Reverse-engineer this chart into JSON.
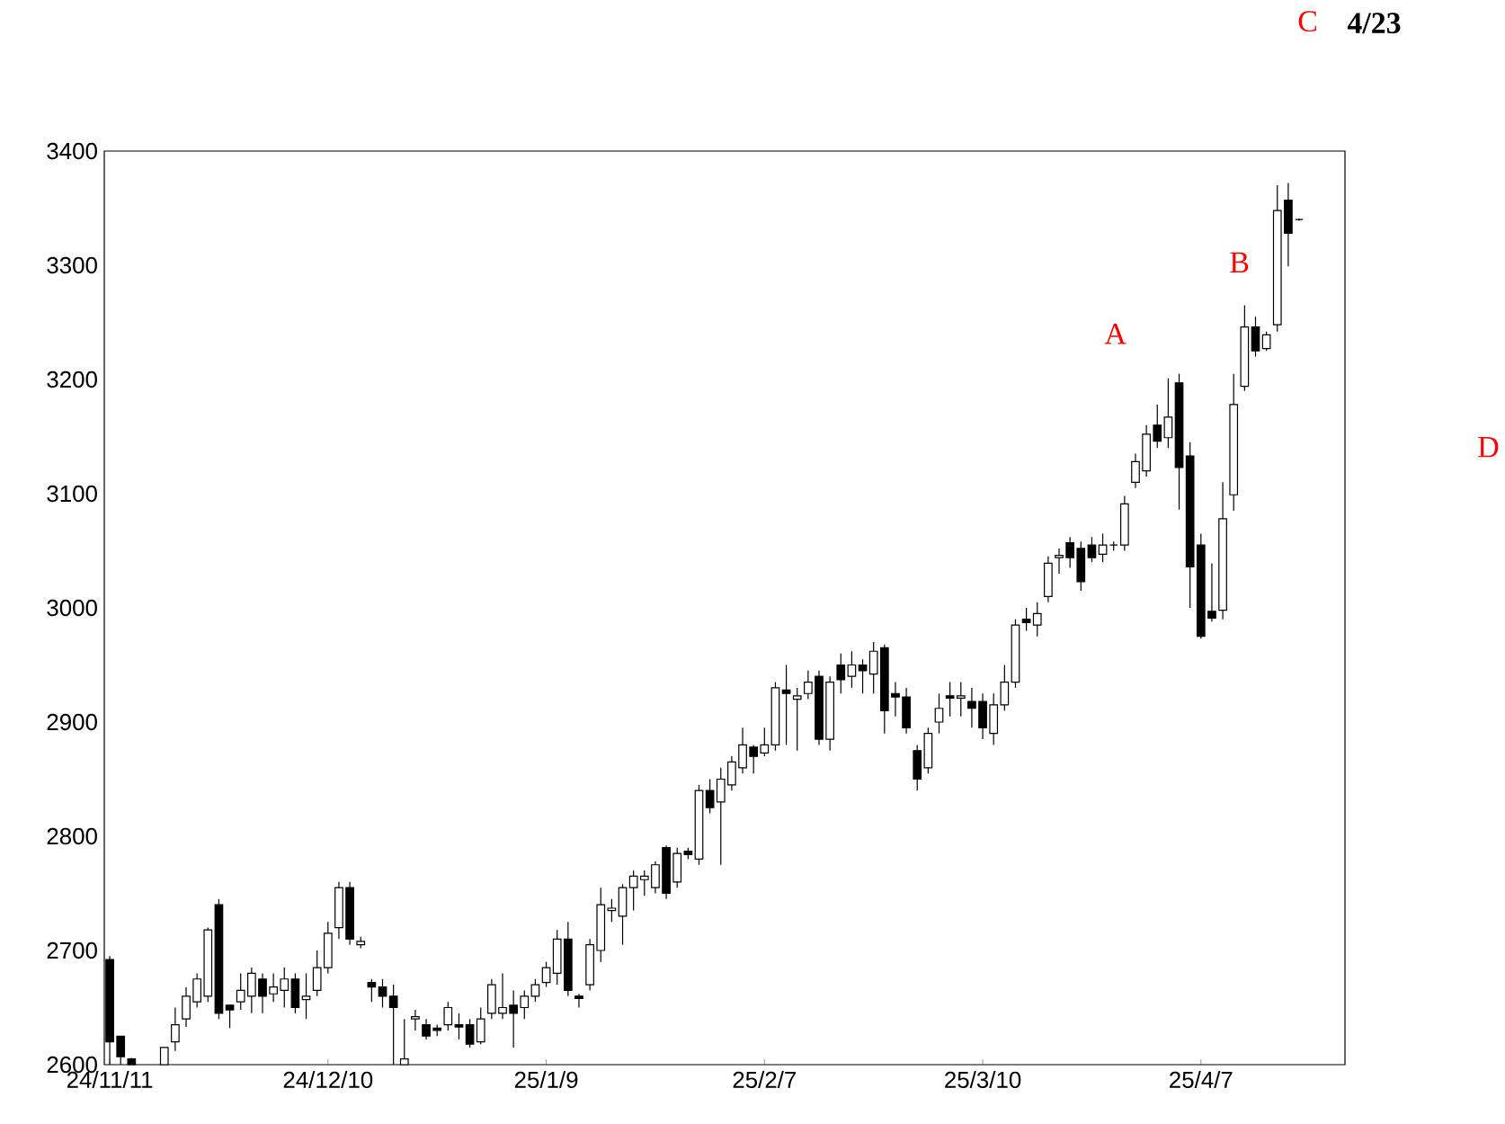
{
  "chart_data": {
    "type": "candlestick",
    "categories": [
      "24/11/11",
      null,
      null,
      null,
      null,
      null,
      null,
      null,
      null,
      null,
      null,
      null,
      null,
      null,
      null,
      null,
      null,
      null,
      null,
      null,
      "24/12/10",
      null,
      null,
      null,
      null,
      null,
      null,
      null,
      null,
      null,
      null,
      null,
      null,
      null,
      null,
      null,
      null,
      null,
      null,
      null,
      "25/1/9",
      null,
      null,
      null,
      null,
      null,
      null,
      null,
      null,
      null,
      null,
      null,
      null,
      null,
      null,
      null,
      null,
      null,
      null,
      null,
      "25/2/7",
      null,
      null,
      null,
      null,
      null,
      null,
      null,
      null,
      null,
      null,
      null,
      null,
      null,
      null,
      null,
      null,
      null,
      null,
      null,
      "25/3/10",
      null,
      null,
      null,
      null,
      null,
      null,
      null,
      null,
      null,
      null,
      null,
      null,
      null,
      null,
      null,
      null,
      null,
      null,
      null,
      "25/4/7",
      null,
      null,
      null,
      null,
      null,
      null,
      null,
      null,
      null
    ],
    "ohlc": [
      [
        2692,
        2695,
        2600,
        2620
      ],
      [
        2625,
        2625,
        2600,
        2607
      ],
      [
        2605,
        2606,
        2600,
        2600
      ],
      null,
      null,
      [
        2600,
        2615,
        2600,
        2615
      ],
      [
        2620,
        2650,
        2612,
        2635
      ],
      [
        2640,
        2668,
        2633,
        2660
      ],
      [
        2655,
        2680,
        2650,
        2675
      ],
      [
        2660,
        2720,
        2655,
        2718
      ],
      [
        2740,
        2745,
        2640,
        2645
      ],
      [
        2652,
        2652,
        2632,
        2648
      ],
      [
        2655,
        2680,
        2648,
        2665
      ],
      [
        2660,
        2685,
        2645,
        2680
      ],
      [
        2675,
        2680,
        2645,
        2660
      ],
      [
        2662,
        2680,
        2655,
        2668
      ],
      [
        2665,
        2685,
        2650,
        2675
      ],
      [
        2675,
        2680,
        2645,
        2650
      ],
      [
        2657,
        2680,
        2640,
        2660
      ],
      [
        2665,
        2700,
        2660,
        2685
      ],
      [
        2685,
        2725,
        2680,
        2715
      ],
      [
        2720,
        2760,
        2710,
        2755
      ],
      [
        2755,
        2760,
        2705,
        2710
      ],
      [
        2705,
        2712,
        2702,
        2708
      ],
      [
        2672,
        2675,
        2655,
        2668
      ],
      [
        2668,
        2675,
        2650,
        2660
      ],
      [
        2660,
        2670,
        2600,
        2650
      ],
      [
        2600,
        2640,
        2600,
        2605
      ],
      [
        2640,
        2648,
        2630,
        2642
      ],
      [
        2635,
        2640,
        2622,
        2625
      ],
      [
        2632,
        2635,
        2625,
        2630
      ],
      [
        2635,
        2655,
        2630,
        2650
      ],
      [
        2635,
        2645,
        2622,
        2633
      ],
      [
        2635,
        2640,
        2615,
        2618
      ],
      [
        2620,
        2650,
        2618,
        2640
      ],
      [
        2645,
        2675,
        2640,
        2670
      ],
      [
        2645,
        2680,
        2640,
        2650
      ],
      [
        2652,
        2665,
        2615,
        2645
      ],
      [
        2650,
        2665,
        2640,
        2660
      ],
      [
        2660,
        2675,
        2655,
        2670
      ],
      [
        2672,
        2690,
        2668,
        2685
      ],
      [
        2680,
        2718,
        2670,
        2710
      ],
      [
        2710,
        2725,
        2660,
        2665
      ],
      [
        2660,
        2662,
        2650,
        2658
      ],
      [
        2670,
        2710,
        2665,
        2705
      ],
      [
        2700,
        2755,
        2690,
        2740
      ],
      [
        2735,
        2745,
        2725,
        2737
      ],
      [
        2730,
        2758,
        2705,
        2755
      ],
      [
        2755,
        2770,
        2735,
        2765
      ],
      [
        2762,
        2770,
        2748,
        2765
      ],
      [
        2755,
        2778,
        2750,
        2775
      ],
      [
        2790,
        2792,
        2745,
        2750
      ],
      [
        2760,
        2790,
        2755,
        2785
      ],
      [
        2787,
        2790,
        2780,
        2784
      ],
      [
        2780,
        2845,
        2775,
        2840
      ],
      [
        2840,
        2850,
        2820,
        2825
      ],
      [
        2830,
        2860,
        2775,
        2850
      ],
      [
        2845,
        2870,
        2840,
        2865
      ],
      [
        2860,
        2895,
        2855,
        2880
      ],
      [
        2878,
        2880,
        2855,
        2870
      ],
      [
        2873,
        2895,
        2870,
        2880
      ],
      [
        2880,
        2935,
        2875,
        2930
      ],
      [
        2928,
        2950,
        2880,
        2925
      ],
      [
        2920,
        2930,
        2875,
        2923
      ],
      [
        2925,
        2945,
        2920,
        2935
      ],
      [
        2940,
        2945,
        2880,
        2885
      ],
      [
        2885,
        2940,
        2875,
        2935
      ],
      [
        2950,
        2960,
        2925,
        2937
      ],
      [
        2940,
        2962,
        2930,
        2950
      ],
      [
        2950,
        2955,
        2925,
        2945
      ],
      [
        2942,
        2970,
        2925,
        2962
      ],
      [
        2965,
        2968,
        2890,
        2910
      ],
      [
        2925,
        2935,
        2905,
        2922
      ],
      [
        2922,
        2930,
        2890,
        2895
      ],
      [
        2875,
        2880,
        2840,
        2850
      ],
      [
        2860,
        2895,
        2855,
        2890
      ],
      [
        2900,
        2925,
        2890,
        2912
      ],
      [
        2923,
        2935,
        2905,
        2921
      ],
      [
        2921,
        2935,
        2905,
        2923
      ],
      [
        2918,
        2930,
        2895,
        2912
      ],
      [
        2918,
        2925,
        2885,
        2895
      ],
      [
        2890,
        2925,
        2880,
        2915
      ],
      [
        2915,
        2950,
        2910,
        2935
      ],
      [
        2935,
        2990,
        2930,
        2985
      ],
      [
        2990,
        3000,
        2980,
        2987
      ],
      [
        2985,
        3005,
        2975,
        2995
      ],
      [
        3010,
        3045,
        3005,
        3039
      ],
      [
        3044,
        3052,
        3030,
        3046
      ],
      [
        3057,
        3062,
        3035,
        3044
      ],
      [
        3052,
        3058,
        3015,
        3023
      ],
      [
        3055,
        3062,
        3040,
        3044
      ],
      [
        3047,
        3065,
        3040,
        3055
      ],
      [
        3055,
        3058,
        3050,
        3055
      ],
      [
        3055,
        3098,
        3050,
        3091
      ],
      [
        3110,
        3135,
        3105,
        3128
      ],
      [
        3120,
        3160,
        3115,
        3152
      ],
      [
        3160,
        3178,
        3140,
        3146
      ],
      [
        3149,
        3201,
        3140,
        3167
      ],
      [
        3197,
        3205,
        3086,
        3123
      ],
      [
        3133,
        3145,
        3000,
        3036
      ],
      [
        3055,
        3065,
        2973,
        2975
      ],
      [
        2997,
        3039,
        2988,
        2991
      ],
      [
        2998,
        3110,
        2990,
        3078
      ],
      [
        3099,
        3205,
        3085,
        3178
      ],
      [
        3194,
        3265,
        3190,
        3246
      ],
      [
        3246,
        3255,
        3220,
        3225
      ],
      [
        3227,
        3242,
        3225,
        3239
      ],
      [
        3248,
        3370,
        3242,
        3348
      ],
      [
        3357,
        3372,
        3299,
        3328
      ],
      [
        3340,
        3341,
        3339,
        3340
      ]
    ],
    "ylim": [
      2600,
      3400
    ],
    "yticks": [
      2600,
      2700,
      2800,
      2900,
      3000,
      3100,
      3200,
      3300,
      3400
    ],
    "annotations": [
      "A",
      "B",
      "C",
      "4/23",
      "D"
    ]
  }
}
